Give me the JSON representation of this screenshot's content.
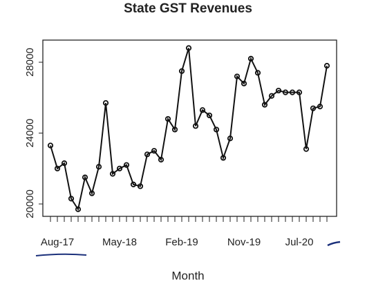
{
  "chart_data": {
    "type": "line",
    "title": "State GST Revenues",
    "x_label": "Month",
    "categories": [
      null,
      "Aug-17",
      null,
      null,
      null,
      null,
      null,
      null,
      null,
      null,
      "May-18",
      null,
      null,
      null,
      null,
      null,
      null,
      null,
      null,
      "Feb-19",
      null,
      null,
      null,
      null,
      null,
      null,
      null,
      null,
      "Nov-19",
      null,
      null,
      null,
      null,
      null,
      null,
      null,
      "Jul-20",
      null,
      null,
      null,
      null
    ],
    "series": [
      {
        "color": "#111111",
        "values": [
          23300,
          22000,
          22300,
          20300,
          19700,
          21500,
          20600,
          22100,
          25700,
          21700,
          22000,
          22200,
          21100,
          21000,
          22800,
          23000,
          22500,
          24800,
          24200,
          27500,
          28800,
          24400,
          25300,
          25000,
          24200,
          22600,
          23700,
          27200,
          26800,
          28200,
          27400,
          25600,
          26100,
          26400,
          26300,
          26300,
          26300,
          23100,
          25400,
          25500,
          27800
        ]
      }
    ],
    "ylim": [
      19300,
      29250
    ],
    "yticks": [
      20000,
      24000,
      28000
    ]
  }
}
